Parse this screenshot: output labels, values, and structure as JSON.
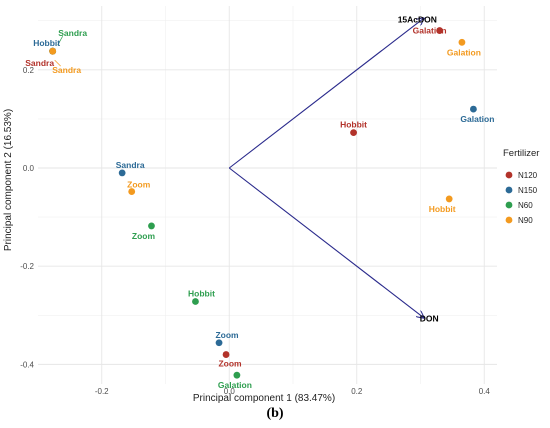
{
  "caption": "(b)",
  "chart_data": {
    "type": "scatter",
    "title": "",
    "xlabel": "Principal component 1 (83.47%)",
    "ylabel": "Principal component 2 (16.53%)",
    "xlim": [
      -0.3,
      0.42
    ],
    "ylim": [
      -0.44,
      0.33
    ],
    "xticks": [
      -0.2,
      0.0,
      0.2,
      0.4
    ],
    "yticks": [
      -0.4,
      -0.2,
      0.0,
      0.2
    ],
    "grid": true,
    "legend": {
      "title": "Fertilizer",
      "position": "right",
      "entries": [
        {
          "name": "N120",
          "color": "#b2322a"
        },
        {
          "name": "N150",
          "color": "#2c6a96"
        },
        {
          "name": "N60",
          "color": "#2e9e4f"
        },
        {
          "name": "N90",
          "color": "#f39a1f"
        }
      ]
    },
    "points": [
      {
        "label": "Galation",
        "group": "N120",
        "x": 0.33,
        "y": 0.28
      },
      {
        "label": "Hobbit",
        "group": "N120",
        "x": 0.195,
        "y": 0.072
      },
      {
        "label": "Zoom",
        "group": "N120",
        "x": -0.005,
        "y": -0.38
      },
      {
        "label": "Sandra",
        "group": "N120",
        "x": -0.277,
        "y": 0.238
      },
      {
        "label": "Galation",
        "group": "N150",
        "x": 0.383,
        "y": 0.12
      },
      {
        "label": "Sandra",
        "group": "N150",
        "x": -0.168,
        "y": -0.01
      },
      {
        "label": "Zoom",
        "group": "N150",
        "x": -0.016,
        "y": -0.356
      },
      {
        "label": "Hobbit",
        "group": "N150",
        "x": -0.277,
        "y": 0.238
      },
      {
        "label": "Zoom",
        "group": "N60",
        "x": -0.122,
        "y": -0.118
      },
      {
        "label": "Hobbit",
        "group": "N60",
        "x": -0.053,
        "y": -0.272
      },
      {
        "label": "Galation",
        "group": "N60",
        "x": 0.012,
        "y": -0.422
      },
      {
        "label": "Sandra",
        "group": "N60",
        "x": -0.277,
        "y": 0.238
      },
      {
        "label": "Galation",
        "group": "N90",
        "x": 0.365,
        "y": 0.256
      },
      {
        "label": "Hobbit",
        "group": "N90",
        "x": 0.345,
        "y": -0.063
      },
      {
        "label": "Zoom",
        "group": "N90",
        "x": -0.153,
        "y": -0.048
      },
      {
        "label": "Sandra",
        "group": "N90",
        "x": -0.277,
        "y": 0.238
      }
    ],
    "vectors": [
      {
        "label": "15AcDON",
        "x": 0.305,
        "y": 0.305
      },
      {
        "label": "DON",
        "x": 0.305,
        "y": -0.305
      }
    ],
    "vector_color": "#2a2a8c"
  }
}
